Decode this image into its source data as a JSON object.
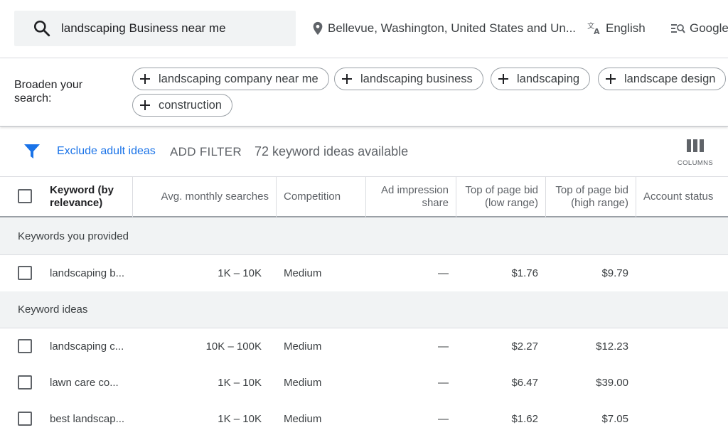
{
  "search": {
    "query": "landscaping Business near me"
  },
  "location": {
    "text": "Bellevue, Washington, United States and Un..."
  },
  "language": {
    "text": "English"
  },
  "network": {
    "text": "Google"
  },
  "broaden": {
    "label": "Broaden your search:",
    "chips": [
      "landscaping company near me",
      "landscaping business",
      "landscaping",
      "landscape design",
      "construction"
    ]
  },
  "toolbar": {
    "exclude_label": "Exclude adult ideas",
    "add_filter_label": "ADD FILTER",
    "available_text": "72 keyword ideas available",
    "columns_label": "COLUMNS"
  },
  "table": {
    "headers": {
      "keyword": "Keyword (by relevance)",
      "avg": "Avg. monthly searches",
      "competition": "Competition",
      "impression": "Ad impression share",
      "bid_low": "Top of page bid (low range)",
      "bid_high": "Top of page bid (high range)",
      "status": "Account status"
    },
    "groups": {
      "provided": "Keywords you provided",
      "ideas": "Keyword ideas"
    },
    "provided_rows": [
      {
        "keyword": "landscaping b...",
        "avg": "1K – 10K",
        "competition": "Medium",
        "impression": "—",
        "bid_low": "$1.76",
        "bid_high": "$9.79",
        "status": ""
      }
    ],
    "idea_rows": [
      {
        "keyword": "landscaping c...",
        "avg": "10K – 100K",
        "competition": "Medium",
        "impression": "—",
        "bid_low": "$2.27",
        "bid_high": "$12.23",
        "status": ""
      },
      {
        "keyword": "lawn care co...",
        "avg": "1K – 10K",
        "competition": "Medium",
        "impression": "—",
        "bid_low": "$6.47",
        "bid_high": "$39.00",
        "status": ""
      },
      {
        "keyword": "best landscap...",
        "avg": "1K – 10K",
        "competition": "Medium",
        "impression": "—",
        "bid_low": "$1.62",
        "bid_high": "$7.05",
        "status": ""
      }
    ]
  },
  "colors": {
    "accent": "#1a73e8",
    "text": "#3c4043",
    "muted": "#5f6368",
    "group_bg": "#f1f3f4",
    "border": "#dadce0"
  }
}
